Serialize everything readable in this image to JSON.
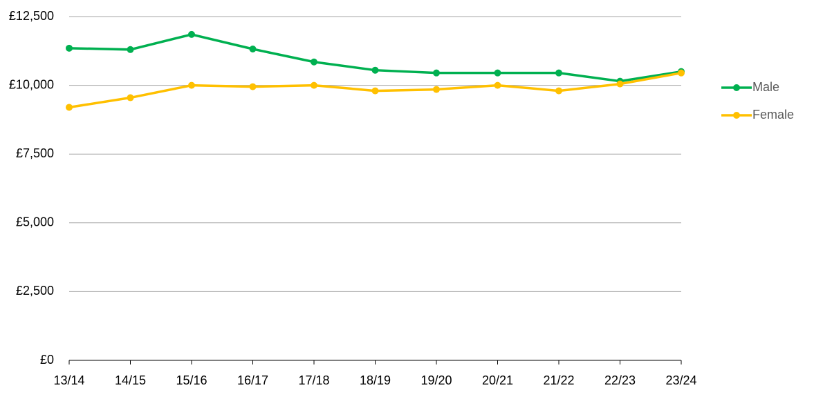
{
  "chart_data": {
    "type": "line",
    "categories": [
      "13/14",
      "14/15",
      "15/16",
      "16/17",
      "17/18",
      "18/19",
      "19/20",
      "20/21",
      "21/22",
      "22/23",
      "23/24"
    ],
    "series": [
      {
        "name": "Male",
        "color": "#00b050",
        "values": [
          11350,
          11300,
          11850,
          11320,
          10850,
          10550,
          10450,
          10450,
          10450,
          10150,
          10500
        ]
      },
      {
        "name": "Female",
        "color": "#ffc000",
        "values": [
          9200,
          9550,
          10000,
          9950,
          10000,
          9800,
          9850,
          10000,
          9800,
          10050,
          10450
        ]
      }
    ],
    "ylim": [
      0,
      12500
    ],
    "yticks": [
      {
        "value": 0,
        "label": "£0"
      },
      {
        "value": 2500,
        "label": "£2,500"
      },
      {
        "value": 5000,
        "label": "£5,000"
      },
      {
        "value": 7500,
        "label": "£7,500"
      },
      {
        "value": 10000,
        "label": "£10,000"
      },
      {
        "value": 12500,
        "label": "£12,500"
      }
    ],
    "grid": true,
    "legend": "right"
  }
}
